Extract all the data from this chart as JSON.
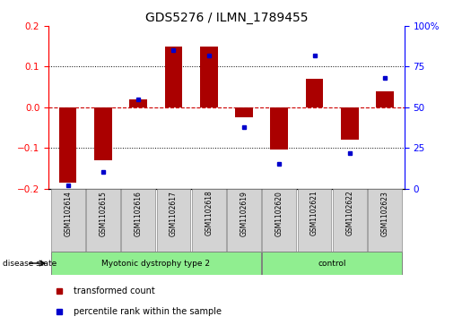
{
  "title": "GDS5276 / ILMN_1789455",
  "samples": [
    "GSM1102614",
    "GSM1102615",
    "GSM1102616",
    "GSM1102617",
    "GSM1102618",
    "GSM1102619",
    "GSM1102620",
    "GSM1102621",
    "GSM1102622",
    "GSM1102623"
  ],
  "red_values": [
    -0.185,
    -0.13,
    0.02,
    0.15,
    0.15,
    -0.025,
    -0.105,
    0.07,
    -0.08,
    0.04
  ],
  "blue_values": [
    2,
    10,
    55,
    85,
    82,
    38,
    15,
    82,
    22,
    68
  ],
  "ylim_left": [
    -0.2,
    0.2
  ],
  "ylim_right": [
    0,
    100
  ],
  "left_yticks": [
    -0.2,
    -0.1,
    0.0,
    0.1,
    0.2
  ],
  "right_yticks": [
    0,
    25,
    50,
    75,
    100
  ],
  "right_yticklabels": [
    "0",
    "25",
    "50",
    "75",
    "100%"
  ],
  "groups": [
    {
      "label": "Myotonic dystrophy type 2",
      "start": 0,
      "end": 6,
      "color": "#90EE90"
    },
    {
      "label": "control",
      "start": 6,
      "end": 10,
      "color": "#90EE90"
    }
  ],
  "disease_state_label": "disease state",
  "legend_red": "transformed count",
  "legend_blue": "percentile rank within the sample",
  "bar_color": "#AA0000",
  "dot_color": "#0000CC",
  "bar_width": 0.5,
  "zero_line_color": "#CC0000",
  "grid_color": "#000000",
  "bg_color": "#FFFFFF",
  "plot_bg_color": "#FFFFFF",
  "sample_box_color": "#D3D3D3",
  "sample_box_edge_color": "#888888"
}
